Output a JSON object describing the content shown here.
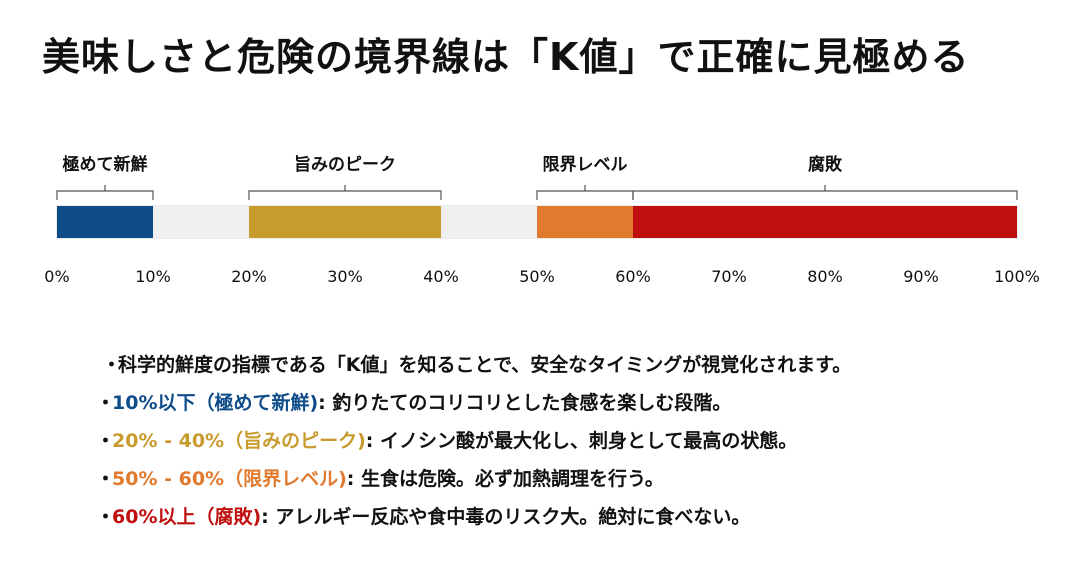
{
  "title": "美味しさと危険の境界線は「K値」で正確に見極める",
  "chart_data": {
    "type": "bar",
    "orientation": "horizontal",
    "axis_range": [
      0,
      100
    ],
    "ticks": [
      "0%",
      "10%",
      "20%",
      "30%",
      "40%",
      "50%",
      "60%",
      "70%",
      "80%",
      "90%",
      "100%"
    ],
    "tick_values": [
      0,
      10,
      20,
      30,
      40,
      50,
      60,
      70,
      80,
      90,
      100
    ],
    "segments": [
      {
        "label": "極めて新鮮",
        "start": 0,
        "end": 10,
        "color": "#0f4c8a"
      },
      {
        "label": "",
        "start": 10,
        "end": 20,
        "color": "#efefef"
      },
      {
        "label": "旨みのピーク",
        "start": 20,
        "end": 40,
        "color": "#c89b2e"
      },
      {
        "label": "",
        "start": 40,
        "end": 50,
        "color": "#efefef"
      },
      {
        "label": "限界レベル",
        "start": 50,
        "end": 60,
        "color": "#e07a2e"
      },
      {
        "label": "腐敗",
        "start": 60,
        "end": 100,
        "color": "#c00f0f"
      }
    ]
  },
  "bullets": [
    {
      "dot": "・",
      "highlight": "",
      "color": "#111111",
      "text": "科学的鮮度の指標である「K値」を知ることで、安全なタイミングが視覚化されます。"
    },
    {
      "dot": "・",
      "highlight": "10%以下（極めて新鮮)",
      "color": "#0f4c8a",
      "text": ": 釣りたてのコリコリとした食感を楽しむ段階。"
    },
    {
      "dot": "・",
      "highlight": "20% - 40%（旨みのピーク)",
      "color": "#c89b2e",
      "text": ": イノシン酸が最大化し、刺身として最高の状態。"
    },
    {
      "dot": "・",
      "highlight": "50% - 60%（限界レベル)",
      "color": "#e07a2e",
      "text": ": 生食は危険。必ず加熱調理を行う。"
    },
    {
      "dot": "・",
      "highlight": "60%以上（腐敗)",
      "color": "#c00f0f",
      "text": ": アレルギー反応や食中毒のリスク大。絶対に食べない。"
    }
  ]
}
